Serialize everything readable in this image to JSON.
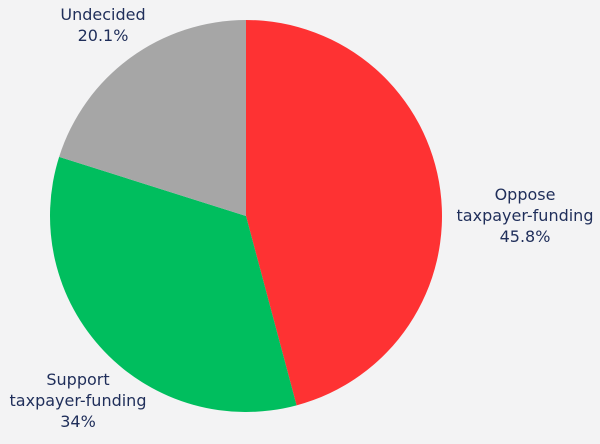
{
  "chart_data": {
    "type": "pie",
    "title": "",
    "start_angle_deg": 0,
    "direction": "clockwise",
    "slices": [
      {
        "label_lines": [
          "Oppose",
          "taxpayer-funding"
        ],
        "value_text": "45.8%",
        "value": 45.8,
        "color": "#fe3233"
      },
      {
        "label_lines": [
          "Support",
          "taxpayer-funding"
        ],
        "value_text": "34%",
        "value": 34.0,
        "color": "#00be5e"
      },
      {
        "label_lines": [
          "Undecided"
        ],
        "value_text": "20.1%",
        "value": 20.1,
        "color": "#a6a6a6"
      }
    ]
  },
  "colors": {
    "background": "#f3f3f4",
    "label_text": "#1f2e5a"
  }
}
